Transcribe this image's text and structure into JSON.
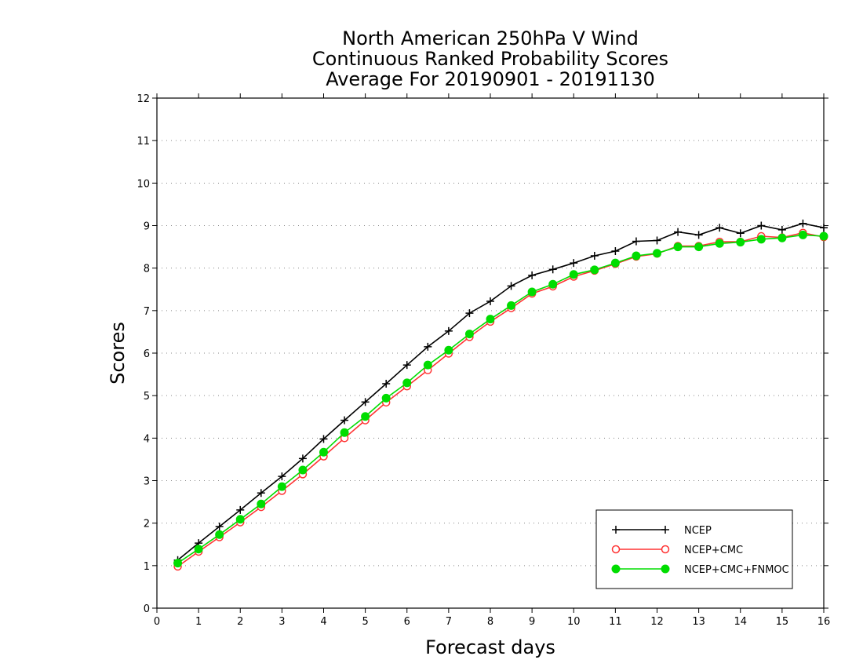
{
  "chart_data": {
    "type": "line",
    "title": [
      "North American 250hPa V Wind",
      "Continuous Ranked Probability Scores",
      "Average For 20190901 - 20191130"
    ],
    "xlabel": "Forecast days",
    "ylabel": "Scores",
    "xlim": [
      0,
      16
    ],
    "ylim": [
      0,
      12
    ],
    "xticks": [
      0,
      1,
      2,
      3,
      4,
      5,
      6,
      7,
      8,
      9,
      10,
      11,
      12,
      13,
      14,
      15,
      16
    ],
    "yticks": [
      0,
      1,
      2,
      3,
      4,
      5,
      6,
      7,
      8,
      9,
      10,
      11,
      12
    ],
    "grid": "horizontal dotted",
    "legend_position": "bottom-right",
    "x": [
      0.5,
      1.0,
      1.5,
      2.0,
      2.5,
      3.0,
      3.5,
      4.0,
      4.5,
      5.0,
      5.5,
      6.0,
      6.5,
      7.0,
      7.5,
      8.0,
      8.5,
      9.0,
      9.5,
      10.0,
      10.5,
      11.0,
      11.5,
      12.0,
      12.5,
      13.0,
      13.5,
      14.0,
      14.5,
      15.0,
      15.5,
      16.0
    ],
    "series": [
      {
        "name": "NCEP",
        "color": "#000000",
        "marker": "plus",
        "values": [
          1.13,
          1.53,
          1.92,
          2.31,
          2.71,
          3.1,
          3.52,
          3.98,
          4.42,
          4.85,
          5.28,
          5.72,
          6.15,
          6.52,
          6.94,
          7.22,
          7.58,
          7.83,
          7.97,
          8.12,
          8.29,
          8.4,
          8.63,
          8.65,
          8.85,
          8.78,
          8.95,
          8.82,
          9.0,
          8.9,
          9.05,
          8.95
        ]
      },
      {
        "name": "NCEP+CMC",
        "color": "#ff3333",
        "marker": "open-circle",
        "values": [
          0.98,
          1.33,
          1.67,
          2.02,
          2.38,
          2.76,
          3.15,
          3.57,
          4.0,
          4.42,
          4.84,
          5.22,
          5.6,
          5.99,
          6.38,
          6.74,
          7.06,
          7.4,
          7.57,
          7.8,
          7.94,
          8.1,
          8.27,
          8.34,
          8.52,
          8.52,
          8.62,
          8.62,
          8.75,
          8.72,
          8.83,
          8.73
        ]
      },
      {
        "name": "NCEP+CMC+FNMOC",
        "color": "#00dd00",
        "marker": "filled-circle",
        "values": [
          1.06,
          1.39,
          1.73,
          2.09,
          2.45,
          2.86,
          3.25,
          3.67,
          4.13,
          4.51,
          4.94,
          5.3,
          5.72,
          6.07,
          6.45,
          6.8,
          7.12,
          7.44,
          7.62,
          7.85,
          7.96,
          8.12,
          8.29,
          8.35,
          8.5,
          8.5,
          8.58,
          8.61,
          8.68,
          8.71,
          8.78,
          8.75
        ]
      }
    ]
  }
}
